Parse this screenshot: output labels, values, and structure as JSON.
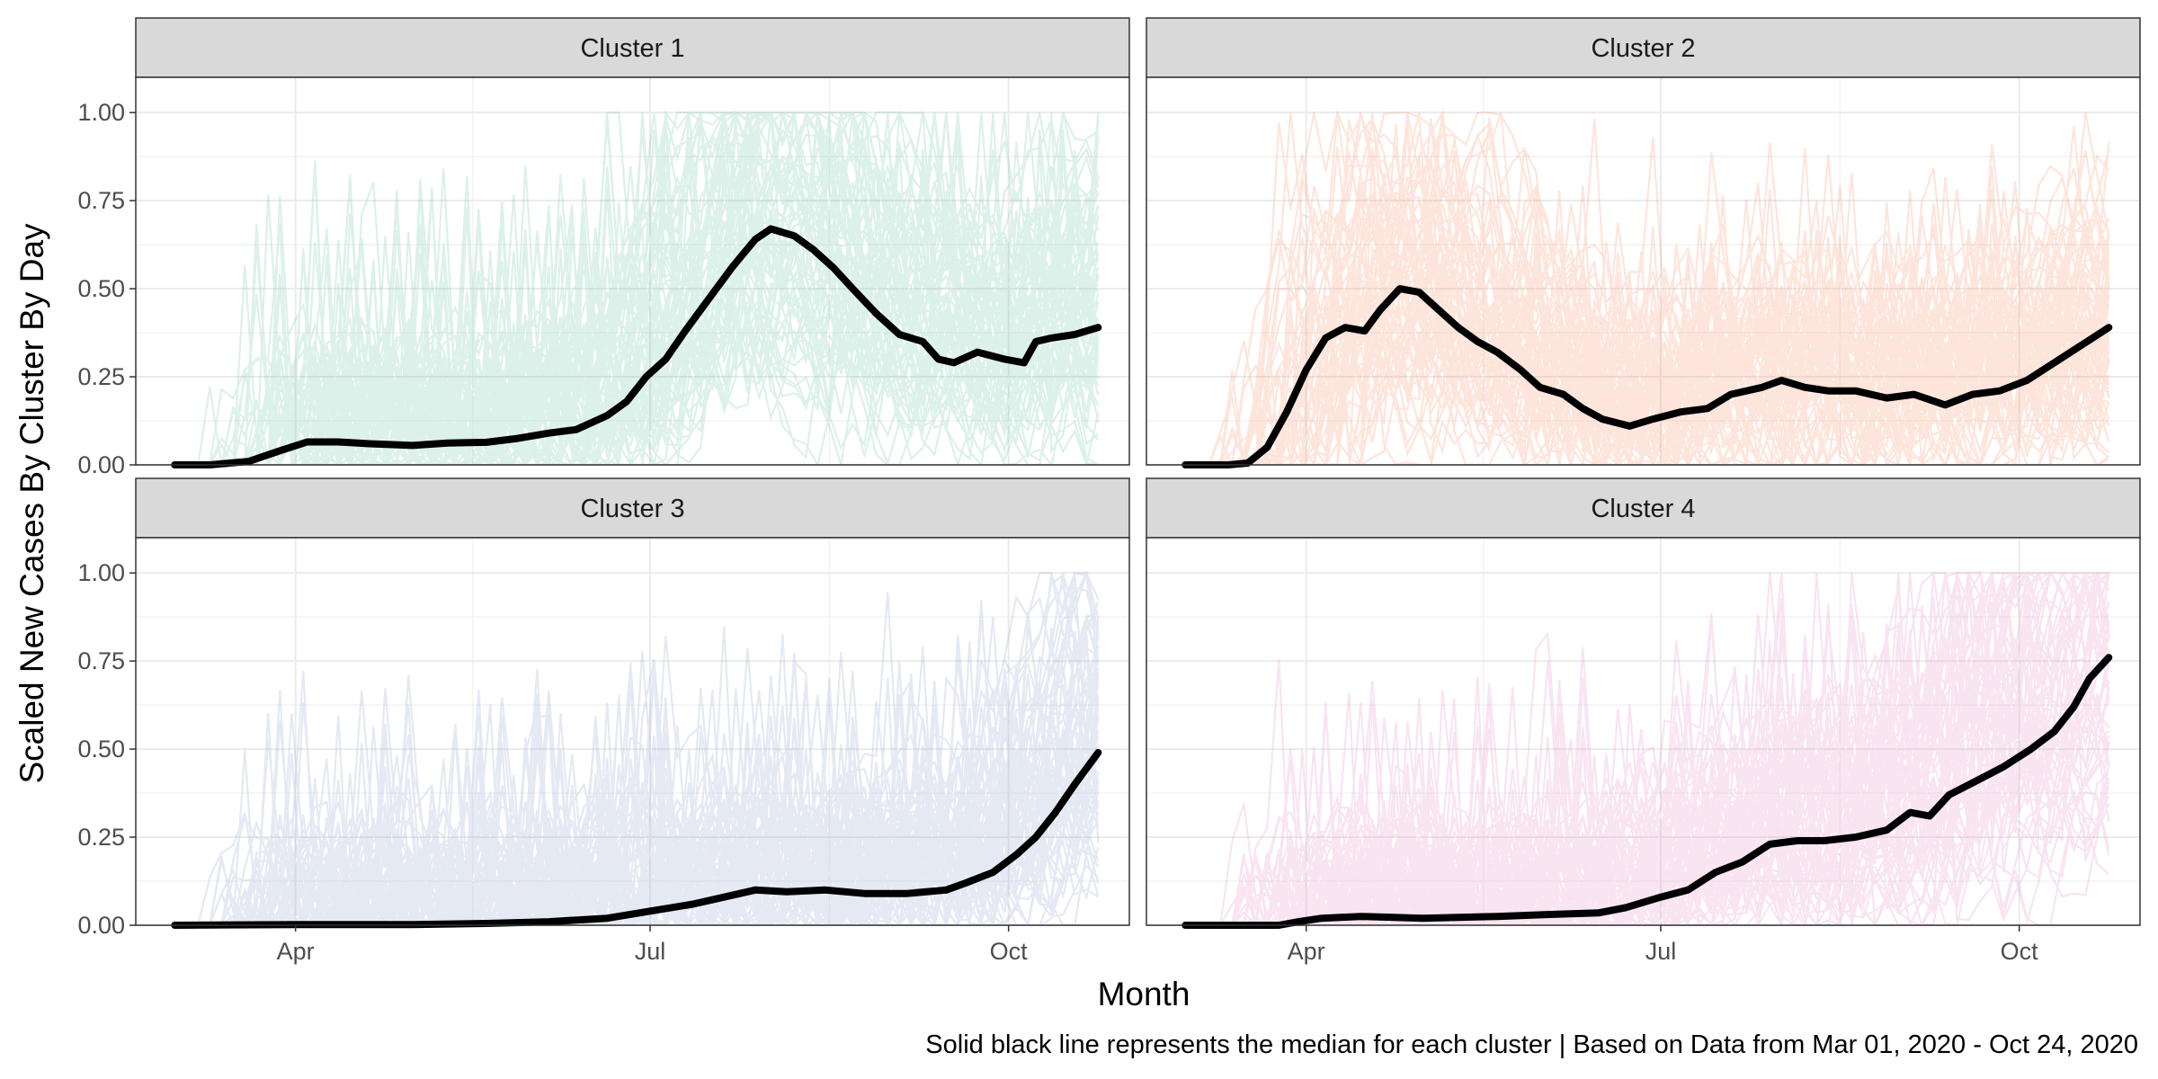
{
  "chart_data": {
    "type": "line",
    "layout": "facet-grid-2x2",
    "xlabel": "Month",
    "ylabel": "Scaled New Cases By Cluster By Day",
    "caption": "Solid black line represents the median for each cluster | Based on Data from Mar 01, 2020 - Oct 24, 2020",
    "x_range": [
      "2020-03-01",
      "2020-10-24"
    ],
    "xlim": [
      "2020-02-20",
      "2020-11-01"
    ],
    "ylim": [
      0,
      1.1
    ],
    "x_ticks": [
      {
        "date": "2020-04-01",
        "label": "Apr"
      },
      {
        "date": "2020-07-01",
        "label": "Jul"
      },
      {
        "date": "2020-10-01",
        "label": "Oct"
      }
    ],
    "y_ticks": [
      {
        "value": 0,
        "label": "0.00"
      },
      {
        "value": 0.25,
        "label": "0.25"
      },
      {
        "value": 0.5,
        "label": "0.50"
      },
      {
        "value": 0.75,
        "label": "0.75"
      },
      {
        "value": 1,
        "label": "1.00"
      }
    ],
    "grid": true,
    "theme": "bw",
    "median_color": "#000000",
    "panels": [
      {
        "strip": "Cluster 1",
        "color": "#66c2a5",
        "background_density": 0.85,
        "median": [
          [
            "2020-03-01",
            0
          ],
          [
            "2020-03-10",
            0
          ],
          [
            "2020-03-20",
            0.01
          ],
          [
            "2020-03-28",
            0.04
          ],
          [
            "2020-04-04",
            0.065
          ],
          [
            "2020-04-12",
            0.065
          ],
          [
            "2020-04-20",
            0.06
          ],
          [
            "2020-05-01",
            0.055
          ],
          [
            "2020-05-10",
            0.062
          ],
          [
            "2020-05-20",
            0.064
          ],
          [
            "2020-05-28",
            0.075
          ],
          [
            "2020-06-05",
            0.09
          ],
          [
            "2020-06-12",
            0.1
          ],
          [
            "2020-06-20",
            0.14
          ],
          [
            "2020-06-25",
            0.18
          ],
          [
            "2020-06-30",
            0.25
          ],
          [
            "2020-07-05",
            0.3
          ],
          [
            "2020-07-10",
            0.38
          ],
          [
            "2020-07-16",
            0.47
          ],
          [
            "2020-07-22",
            0.56
          ],
          [
            "2020-07-28",
            0.64
          ],
          [
            "2020-08-01",
            0.67
          ],
          [
            "2020-08-07",
            0.65
          ],
          [
            "2020-08-12",
            0.61
          ],
          [
            "2020-08-17",
            0.56
          ],
          [
            "2020-08-22",
            0.5
          ],
          [
            "2020-08-28",
            0.43
          ],
          [
            "2020-09-03",
            0.37
          ],
          [
            "2020-09-09",
            0.35
          ],
          [
            "2020-09-13",
            0.3
          ],
          [
            "2020-09-17",
            0.29
          ],
          [
            "2020-09-23",
            0.32
          ],
          [
            "2020-09-30",
            0.3
          ],
          [
            "2020-10-05",
            0.29
          ],
          [
            "2020-10-08",
            0.35
          ],
          [
            "2020-10-12",
            0.36
          ],
          [
            "2020-10-18",
            0.37
          ],
          [
            "2020-10-24",
            0.39
          ]
        ]
      },
      {
        "strip": "Cluster 2",
        "color": "#fc8d62",
        "background_density": 0.55,
        "median": [
          [
            "2020-03-01",
            0
          ],
          [
            "2020-03-12",
            0
          ],
          [
            "2020-03-17",
            0.005
          ],
          [
            "2020-03-22",
            0.05
          ],
          [
            "2020-03-27",
            0.15
          ],
          [
            "2020-04-01",
            0.27
          ],
          [
            "2020-04-06",
            0.36
          ],
          [
            "2020-04-11",
            0.39
          ],
          [
            "2020-04-16",
            0.38
          ],
          [
            "2020-04-20",
            0.44
          ],
          [
            "2020-04-25",
            0.5
          ],
          [
            "2020-04-30",
            0.49
          ],
          [
            "2020-05-05",
            0.44
          ],
          [
            "2020-05-10",
            0.39
          ],
          [
            "2020-05-15",
            0.35
          ],
          [
            "2020-05-20",
            0.32
          ],
          [
            "2020-05-26",
            0.27
          ],
          [
            "2020-05-31",
            0.22
          ],
          [
            "2020-06-06",
            0.2
          ],
          [
            "2020-06-11",
            0.16
          ],
          [
            "2020-06-16",
            0.13
          ],
          [
            "2020-06-23",
            0.11
          ],
          [
            "2020-06-29",
            0.13
          ],
          [
            "2020-07-06",
            0.15
          ],
          [
            "2020-07-13",
            0.16
          ],
          [
            "2020-07-19",
            0.2
          ],
          [
            "2020-07-27",
            0.22
          ],
          [
            "2020-08-01",
            0.24
          ],
          [
            "2020-08-07",
            0.22
          ],
          [
            "2020-08-13",
            0.21
          ],
          [
            "2020-08-20",
            0.21
          ],
          [
            "2020-08-28",
            0.19
          ],
          [
            "2020-09-04",
            0.2
          ],
          [
            "2020-09-12",
            0.17
          ],
          [
            "2020-09-19",
            0.2
          ],
          [
            "2020-09-26",
            0.21
          ],
          [
            "2020-10-03",
            0.24
          ],
          [
            "2020-10-10",
            0.29
          ],
          [
            "2020-10-17",
            0.34
          ],
          [
            "2020-10-24",
            0.39
          ]
        ]
      },
      {
        "strip": "Cluster 3",
        "color": "#8da0cb",
        "background_density": 0.7,
        "median": [
          [
            "2020-03-01",
            0
          ],
          [
            "2020-04-01",
            0.002
          ],
          [
            "2020-05-01",
            0.002
          ],
          [
            "2020-05-20",
            0.005
          ],
          [
            "2020-06-05",
            0.01
          ],
          [
            "2020-06-20",
            0.02
          ],
          [
            "2020-07-01",
            0.04
          ],
          [
            "2020-07-12",
            0.06
          ],
          [
            "2020-07-20",
            0.08
          ],
          [
            "2020-07-28",
            0.1
          ],
          [
            "2020-08-05",
            0.095
          ],
          [
            "2020-08-15",
            0.1
          ],
          [
            "2020-08-25",
            0.09
          ],
          [
            "2020-09-05",
            0.09
          ],
          [
            "2020-09-15",
            0.1
          ],
          [
            "2020-09-20",
            0.12
          ],
          [
            "2020-09-27",
            0.15
          ],
          [
            "2020-10-03",
            0.2
          ],
          [
            "2020-10-08",
            0.25
          ],
          [
            "2020-10-13",
            0.32
          ],
          [
            "2020-10-18",
            0.4
          ],
          [
            "2020-10-24",
            0.49
          ]
        ]
      },
      {
        "strip": "Cluster 4",
        "color": "#e78ac3",
        "background_density": 0.75,
        "median": [
          [
            "2020-03-01",
            0
          ],
          [
            "2020-03-25",
            0
          ],
          [
            "2020-03-30",
            0.01
          ],
          [
            "2020-04-05",
            0.02
          ],
          [
            "2020-04-15",
            0.025
          ],
          [
            "2020-05-01",
            0.02
          ],
          [
            "2020-05-20",
            0.025
          ],
          [
            "2020-06-01",
            0.03
          ],
          [
            "2020-06-15",
            0.035
          ],
          [
            "2020-06-22",
            0.05
          ],
          [
            "2020-07-01",
            0.08
          ],
          [
            "2020-07-08",
            0.1
          ],
          [
            "2020-07-15",
            0.15
          ],
          [
            "2020-07-22",
            0.18
          ],
          [
            "2020-07-29",
            0.23
          ],
          [
            "2020-08-05",
            0.24
          ],
          [
            "2020-08-12",
            0.24
          ],
          [
            "2020-08-20",
            0.25
          ],
          [
            "2020-08-28",
            0.27
          ],
          [
            "2020-09-03",
            0.32
          ],
          [
            "2020-09-08",
            0.31
          ],
          [
            "2020-09-13",
            0.37
          ],
          [
            "2020-09-20",
            0.41
          ],
          [
            "2020-09-27",
            0.45
          ],
          [
            "2020-10-04",
            0.5
          ],
          [
            "2020-10-10",
            0.55
          ],
          [
            "2020-10-15",
            0.62
          ],
          [
            "2020-10-19",
            0.7
          ],
          [
            "2020-10-24",
            0.76
          ]
        ]
      }
    ]
  }
}
